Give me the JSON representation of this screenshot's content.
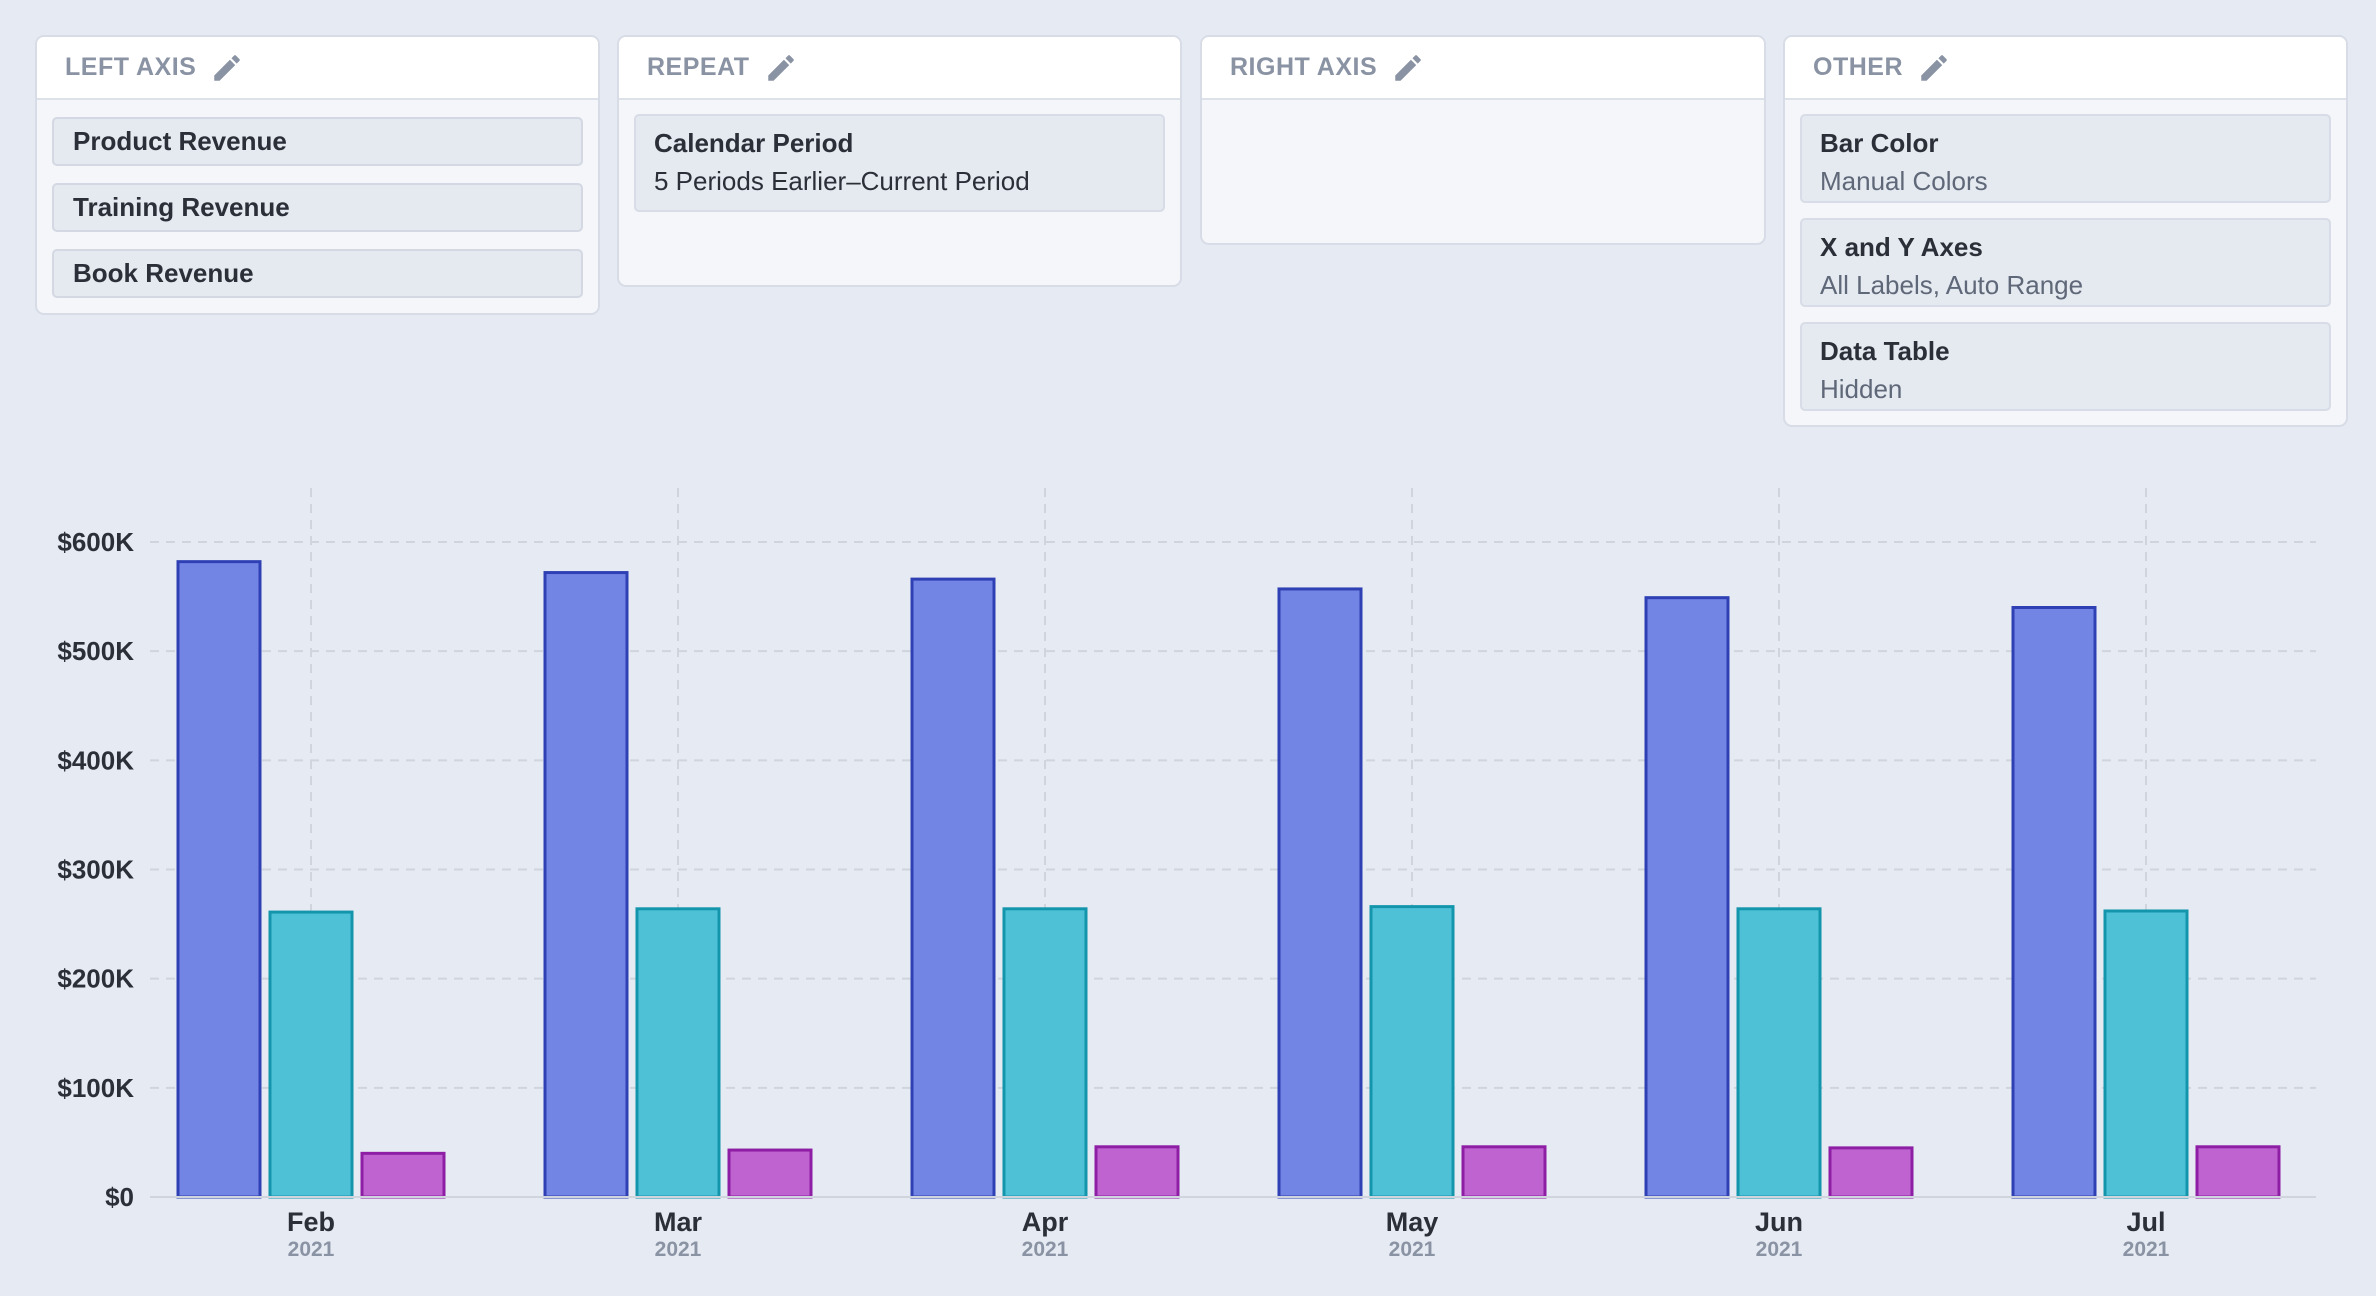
{
  "panels": {
    "left_axis": {
      "title": "LEFT AXIS",
      "items": [
        "Product Revenue",
        "Training Revenue",
        "Book Revenue"
      ]
    },
    "repeat": {
      "title": "REPEAT",
      "item": {
        "title": "Calendar Period",
        "value": "5 Periods Earlier–Current Period"
      }
    },
    "right_axis": {
      "title": "RIGHT AXIS"
    },
    "other": {
      "title": "OTHER",
      "items": [
        {
          "title": "Bar Color",
          "value": "Manual Colors"
        },
        {
          "title": "X and Y Axes",
          "value": "All Labels, Auto Range"
        },
        {
          "title": "Data Table",
          "value": "Hidden"
        }
      ]
    }
  },
  "chart_data": {
    "type": "bar",
    "categories": [
      "Feb",
      "Mar",
      "Apr",
      "May",
      "Jun",
      "Jul"
    ],
    "category_sublabels": [
      "2021",
      "2021",
      "2021",
      "2021",
      "2021",
      "2021"
    ],
    "series": [
      {
        "name": "Product Revenue",
        "values": [
          582000,
          572000,
          566000,
          557000,
          549000,
          540000
        ],
        "color": "#7385e4",
        "stroke": "#2f40b4"
      },
      {
        "name": "Training Revenue",
        "values": [
          261000,
          264000,
          264000,
          266000,
          264000,
          262000
        ],
        "color": "#4fc1d7",
        "stroke": "#1396ac"
      },
      {
        "name": "Book Revenue",
        "values": [
          40000,
          43000,
          46000,
          46000,
          45000,
          46000
        ],
        "color": "#bf63d1",
        "stroke": "#8e1fa5"
      }
    ],
    "ylim": [
      0,
      600000
    ],
    "yticks": [
      "$0",
      "$100K",
      "$200K",
      "$300K",
      "$400K",
      "$500K",
      "$600K"
    ],
    "grid": true
  }
}
